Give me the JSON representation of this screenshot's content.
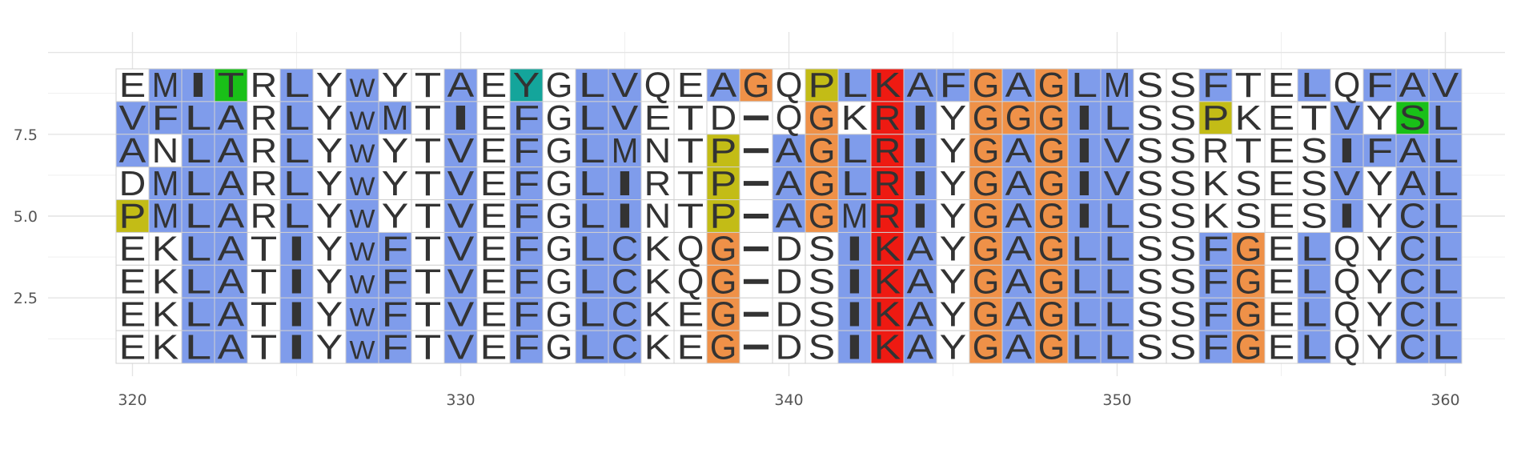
{
  "chart_data": {
    "type": "heatmap",
    "title": "",
    "xlabel": "",
    "ylabel": "",
    "xlim": [
      319.5,
      360.5
    ],
    "ylim": [
      0.5,
      9.5
    ],
    "x_start": 320,
    "x_ticks": [
      320,
      330,
      340,
      350,
      360
    ],
    "y_ticks": [
      2.5,
      5.0,
      7.5
    ],
    "y_tick_labels": [
      "2.5",
      "5.0",
      "7.5"
    ],
    "grid": true,
    "legend": "none",
    "sequences": [
      "EMITRLYWYTAEYGLVQEAGQPLKAFGAGLMSSFTELQFAV",
      "VFLARLYWMTIEFGLVETD-QGKRIYGGGILSSPKETVYSL",
      "ANLARLYWYTVEFGLMNTP-AGLRIYGAGIVSSRTESIFAL",
      "DMLARLYWYTVEFGLIRTP-AGLRIYGAGIVSSKSESVYAL",
      "PMLARLYWYTVEFGLINTP-AGMRIYGAGILSSKSESIYCL",
      "EKLATIYWFTVEFGLCKQG-DSIKAYGAGLLSSFGELQYCL",
      "EKLATIYWFTVEFGLCKQG-DSIKAYGAGLLSSFGELQYCL",
      "EKLATIYWFTVEFGLCKEG-DSIKAYGAGLLSSFGELQYCL",
      "EKLATIYWFTVEFGLCKEG-DSIKAYGAGLLSSFGELQYCL"
    ],
    "color_scheme": {
      "hydrophobic": "#7f9ceb",
      "glycine": "#ef9148",
      "proline": "#c3bc16",
      "positive": "#ee1a12",
      "polar": "#19c018",
      "aromatic": "#14a59b",
      "none": "#ffffff"
    },
    "highlights": [
      {
        "x": 323,
        "y": 9,
        "class": "polar"
      },
      {
        "x": 332,
        "y": 9,
        "class": "aromatic"
      },
      {
        "x": 339,
        "y": 9,
        "class": "glycine"
      },
      {
        "x": 341,
        "y": 9,
        "class": "proline"
      },
      {
        "x": 343,
        "y": 9,
        "class": "positive"
      },
      {
        "x": 346,
        "y": 9,
        "class": "glycine"
      },
      {
        "x": 348,
        "y": 9,
        "class": "glycine"
      },
      {
        "x": 341,
        "y": 8,
        "class": "glycine"
      },
      {
        "x": 343,
        "y": 8,
        "class": "positive"
      },
      {
        "x": 346,
        "y": 8,
        "class": "glycine"
      },
      {
        "x": 347,
        "y": 8,
        "class": "glycine"
      },
      {
        "x": 348,
        "y": 8,
        "class": "glycine"
      },
      {
        "x": 353,
        "y": 8,
        "class": "proline"
      },
      {
        "x": 359,
        "y": 8,
        "class": "polar"
      },
      {
        "x": 338,
        "y": 7,
        "class": "proline"
      },
      {
        "x": 341,
        "y": 7,
        "class": "glycine"
      },
      {
        "x": 343,
        "y": 7,
        "class": "positive"
      },
      {
        "x": 346,
        "y": 7,
        "class": "glycine"
      },
      {
        "x": 348,
        "y": 7,
        "class": "glycine"
      },
      {
        "x": 338,
        "y": 6,
        "class": "proline"
      },
      {
        "x": 341,
        "y": 6,
        "class": "glycine"
      },
      {
        "x": 343,
        "y": 6,
        "class": "positive"
      },
      {
        "x": 346,
        "y": 6,
        "class": "glycine"
      },
      {
        "x": 348,
        "y": 6,
        "class": "glycine"
      },
      {
        "x": 320,
        "y": 5,
        "class": "proline"
      },
      {
        "x": 338,
        "y": 5,
        "class": "proline"
      },
      {
        "x": 341,
        "y": 5,
        "class": "glycine"
      },
      {
        "x": 343,
        "y": 5,
        "class": "positive"
      },
      {
        "x": 346,
        "y": 5,
        "class": "glycine"
      },
      {
        "x": 348,
        "y": 5,
        "class": "glycine"
      },
      {
        "x": 338,
        "y": 4,
        "class": "glycine"
      },
      {
        "x": 343,
        "y": 4,
        "class": "positive"
      },
      {
        "x": 346,
        "y": 4,
        "class": "glycine"
      },
      {
        "x": 348,
        "y": 4,
        "class": "glycine"
      },
      {
        "x": 354,
        "y": 4,
        "class": "glycine"
      },
      {
        "x": 338,
        "y": 3,
        "class": "glycine"
      },
      {
        "x": 343,
        "y": 3,
        "class": "positive"
      },
      {
        "x": 346,
        "y": 3,
        "class": "glycine"
      },
      {
        "x": 348,
        "y": 3,
        "class": "glycine"
      },
      {
        "x": 354,
        "y": 3,
        "class": "glycine"
      },
      {
        "x": 338,
        "y": 2,
        "class": "glycine"
      },
      {
        "x": 343,
        "y": 2,
        "class": "positive"
      },
      {
        "x": 346,
        "y": 2,
        "class": "glycine"
      },
      {
        "x": 348,
        "y": 2,
        "class": "glycine"
      },
      {
        "x": 354,
        "y": 2,
        "class": "glycine"
      },
      {
        "x": 338,
        "y": 1,
        "class": "glycine"
      },
      {
        "x": 343,
        "y": 1,
        "class": "positive"
      },
      {
        "x": 346,
        "y": 1,
        "class": "glycine"
      },
      {
        "x": 348,
        "y": 1,
        "class": "glycine"
      },
      {
        "x": 354,
        "y": 1,
        "class": "glycine"
      }
    ],
    "hydrophobic_columns": [
      {
        "columns": [
          322,
          323,
          324,
          325,
          330,
          332,
          334,
          335,
          359,
          360
        ],
        "rows": [
          1,
          2,
          3,
          4,
          5,
          6,
          7,
          8
        ]
      },
      {
        "columns": [
          333
        ],
        "rows": [
          1,
          2,
          3,
          4,
          5,
          6,
          7,
          8
        ]
      },
      {
        "columns": [
          320,
          321,
          325,
          330,
          335,
          359,
          360
        ],
        "rows": [
          9
        ]
      },
      {
        "columns": [
          325,
          330,
          360
        ],
        "rows": [
          6,
          7,
          8
        ]
      },
      {
        "columns": [
          325,
          330,
          360
        ],
        "rows": [
          5
        ]
      },
      {
        "columns": [
          330,
          360
        ],
        "rows": [
          1,
          2,
          3,
          4
        ]
      },
      {
        "columns": [
          326
        ],
        "rows": [
          1,
          2,
          3,
          4
        ]
      }
    ]
  }
}
